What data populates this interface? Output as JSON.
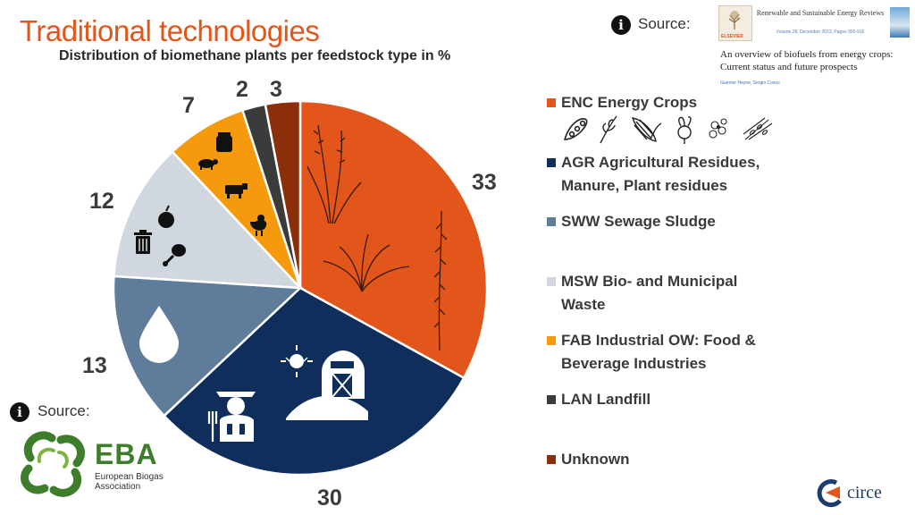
{
  "header": {
    "title": "Traditional technologies",
    "subtitle": "Distribution of biomethane plants per feedstock type in %"
  },
  "sources": {
    "top_label": "Source:",
    "bottom_label": "Source:",
    "journal_name": "Renewable and Sustainable Energy Reviews",
    "journal_volume": "Volume 28, December 2013, Pages 900-916",
    "publisher": "ELSEVIER",
    "article_title": "An overview of biofuels from energy crops: Current status and future prospects",
    "article_authors": "Guenter Heyne, Sergio Cossu",
    "eba_name": "EBA",
    "eba_full": "European Biogas Association",
    "circe": "circe"
  },
  "chart_data": {
    "type": "pie",
    "title": "",
    "start_angle_deg": 0,
    "direction": "clockwise",
    "slices": [
      {
        "code": "ENC",
        "label": "ENC Energy Crops",
        "value": 33,
        "color": "#e2561b"
      },
      {
        "code": "AGR",
        "label": "AGR Agricultural Residues, Manure, Plant residues",
        "value": 30,
        "color": "#0f2e5c"
      },
      {
        "code": "SWW",
        "label": "SWW Sewage Sludge",
        "value": 13,
        "color": "#5f7c9b"
      },
      {
        "code": "MSW",
        "label": "MSW Bio- and Municipal Waste",
        "value": 12,
        "color": "#d1d7de"
      },
      {
        "code": "FAB",
        "label": "FAB Industrial OW: Food & Beverage Industries",
        "value": 7,
        "color": "#f59a0d"
      },
      {
        "code": "LAN",
        "label": "LAN Landfill",
        "value": 2,
        "color": "#3b3b3b"
      },
      {
        "code": "UNK",
        "label": "Unknown",
        "value": 3,
        "color": "#8b2e0a"
      }
    ],
    "data_labels": [
      "33",
      "30",
      "13",
      "12",
      "7",
      "2",
      "3"
    ],
    "legend_position": "right"
  },
  "legend": {
    "enc_line1": "ENC Energy Crops",
    "agr_line1": "AGR Agricultural Residues,",
    "agr_line2": "Manure, Plant residues",
    "sww_line1": "SWW Sewage Sludge",
    "msw_line1": "MSW Bio- and Municipal",
    "msw_line2": "Waste",
    "fab_line1": "FAB Industrial OW: Food &",
    "fab_line2": "Beverage Industries",
    "lan_line1": "LAN Landfill",
    "unk_line1": "Unknown"
  },
  "icons": {
    "info": "info-circle-icon",
    "enc": "grass-plant-icon",
    "agr": "farmer-barn-icon",
    "sww": "water-drop-icon",
    "msw": "trash-food-icon",
    "fab": "livestock-icon",
    "crops": [
      "soybean-icon",
      "wheat-icon",
      "corn-icon",
      "beet-icon",
      "flower-icon",
      "grain-icon"
    ]
  }
}
